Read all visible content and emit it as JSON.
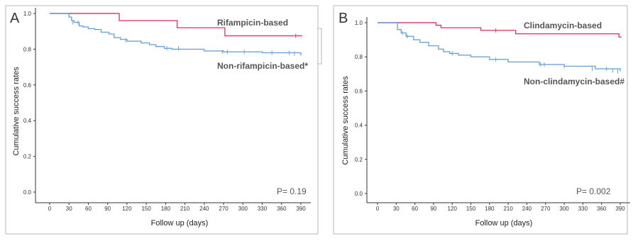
{
  "panels": [
    {
      "letter": "A",
      "ylabel": "Cumulative success rates",
      "xlabel": "Follow up (days)",
      "p_value_text": "P= 0.19",
      "x_ticks": [
        "0",
        "30",
        "60",
        "90",
        "120",
        "150",
        "180",
        "210",
        "240",
        "270",
        "300",
        "330",
        "360",
        "390"
      ],
      "y_ticks": [
        "0.0",
        "0.2",
        "0.4",
        "0.6",
        "0.8",
        "1.0"
      ],
      "ytick_values": [
        0.0,
        0.2,
        0.4,
        0.6,
        0.8,
        1.0
      ],
      "series_label_1": "Rifampicin-based",
      "series_label_2": "Non-rifampicin-based*",
      "colors": {
        "series1": "#d6446a",
        "series2": "#6fa3d8"
      }
    },
    {
      "letter": "B",
      "ylabel": "Cumulative success rates",
      "xlabel": "Follow up (days)",
      "p_value_text": "P= 0.002",
      "x_ticks": [
        "0",
        "30",
        "60",
        "90",
        "120",
        "150",
        "180",
        "210",
        "240",
        "270",
        "300",
        "330",
        "360",
        "390"
      ],
      "y_ticks": [
        "0.0",
        "0.2",
        "0.4",
        "0.6",
        "0.8",
        "1.0"
      ],
      "ytick_values": [
        0.0,
        0.2,
        0.4,
        0.6,
        0.8,
        1.0
      ],
      "series_label_1": "Clindamycin-based",
      "series_label_2": "Non-clindamycin-based#",
      "colors": {
        "series1": "#d6446a",
        "series2": "#6fa3d8"
      }
    }
  ],
  "chart_data": [
    {
      "type": "line",
      "step": true,
      "xlim": [
        0,
        390
      ],
      "ylim": [
        0.0,
        1.0
      ],
      "series": [
        {
          "name": "Rifampicin-based",
          "x": [
            0,
            108,
            108,
            198,
            198,
            272,
            272,
            392
          ],
          "y": [
            1.0,
            1.0,
            0.96,
            0.96,
            0.92,
            0.92,
            0.875,
            0.875
          ],
          "censored": [
            [
              382,
              0.875
            ]
          ]
        },
        {
          "name": "Non-rifampicin-based*",
          "x": [
            0,
            26,
            30,
            34,
            38,
            46,
            52,
            60,
            70,
            80,
            92,
            100,
            110,
            120,
            142,
            155,
            165,
            178,
            190,
            240,
            270,
            330,
            390
          ],
          "y": [
            1.0,
            1.0,
            0.98,
            0.96,
            0.95,
            0.93,
            0.925,
            0.915,
            0.91,
            0.895,
            0.885,
            0.865,
            0.855,
            0.845,
            0.835,
            0.825,
            0.815,
            0.805,
            0.8,
            0.79,
            0.785,
            0.78,
            0.765
          ],
          "censored": [
            [
              36,
              0.95
            ],
            [
              44,
              0.95
            ],
            [
              118,
              0.85
            ],
            [
              182,
              0.805
            ],
            [
              200,
              0.805
            ],
            [
              268,
              0.785
            ],
            [
              276,
              0.785
            ],
            [
              302,
              0.785
            ],
            [
              345,
              0.78
            ],
            [
              372,
              0.78
            ],
            [
              380,
              0.775
            ]
          ]
        }
      ]
    },
    {
      "type": "line",
      "step": true,
      "xlim": [
        0,
        390
      ],
      "ylim": [
        0.0,
        1.0
      ],
      "series": [
        {
          "name": "Clindamycin-based",
          "x": [
            0,
            94,
            94,
            102,
            102,
            166,
            166,
            222,
            222,
            388,
            388,
            392
          ],
          "y": [
            1.0,
            1.0,
            0.985,
            0.985,
            0.97,
            0.97,
            0.955,
            0.955,
            0.935,
            0.935,
            0.915,
            0.915
          ],
          "censored": [
            [
              190,
              0.955
            ]
          ]
        },
        {
          "name": "Non-clindamycin-based#",
          "x": [
            0,
            28,
            32,
            38,
            46,
            58,
            68,
            82,
            98,
            106,
            116,
            130,
            150,
            180,
            210,
            260,
            300,
            350,
            390
          ],
          "y": [
            1.0,
            1.0,
            0.96,
            0.94,
            0.92,
            0.9,
            0.885,
            0.865,
            0.845,
            0.83,
            0.82,
            0.81,
            0.8,
            0.785,
            0.77,
            0.755,
            0.745,
            0.73,
            0.715
          ],
          "censored": [
            [
              40,
              0.94
            ],
            [
              48,
              0.92
            ],
            [
              120,
              0.82
            ],
            [
              190,
              0.785
            ],
            [
              262,
              0.755
            ],
            [
              268,
              0.755
            ],
            [
              300,
              0.745
            ],
            [
              345,
              0.73
            ],
            [
              368,
              0.73
            ],
            [
              378,
              0.72
            ],
            [
              386,
              0.715
            ]
          ]
        }
      ]
    }
  ]
}
